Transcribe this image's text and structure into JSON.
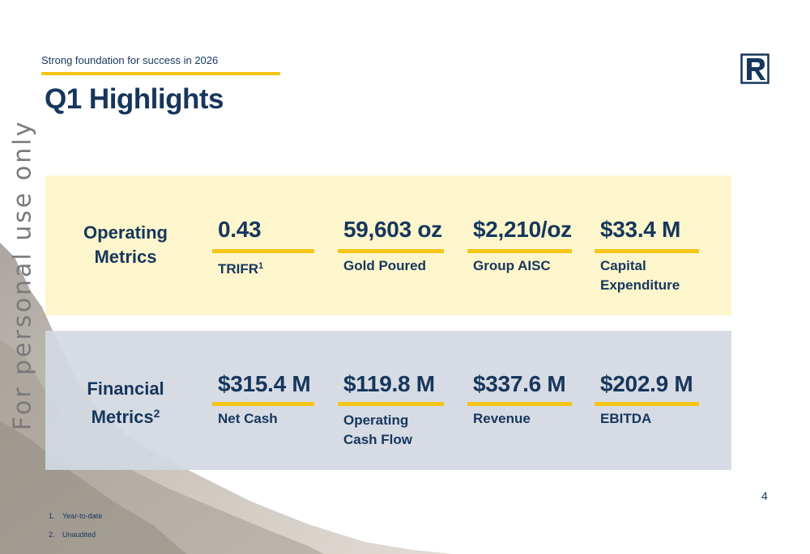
{
  "watermark": "For personal use only",
  "header": {
    "subtitle": "Strong foundation for success in 2026",
    "title": "Q1 Highlights"
  },
  "operating": {
    "label": "Operating Metrics",
    "metrics": [
      {
        "value": "0.43",
        "label": "TRIFR",
        "sup": "1"
      },
      {
        "value": "59,603 oz",
        "label": "Gold Poured",
        "sup": ""
      },
      {
        "value": "$2,210/oz",
        "label": "Group AISC",
        "sup": ""
      },
      {
        "value": "$33.4 M",
        "label": "Capital Expenditure",
        "sup": ""
      }
    ]
  },
  "financial": {
    "label": "Financial Metrics",
    "sup": "2",
    "metrics": [
      {
        "value": "$315.4 M",
        "label": "Net Cash",
        "sup": ""
      },
      {
        "value": "$119.8 M",
        "label": "Operating Cash Flow",
        "sup": ""
      },
      {
        "value": "$337.6 M",
        "label": "Revenue",
        "sup": ""
      },
      {
        "value": "$202.9 M",
        "label": "EBITDA",
        "sup": ""
      }
    ]
  },
  "footnotes": [
    {
      "number": "1.",
      "text": "Year-to-date"
    },
    {
      "number": "2.",
      "text": "Unaudited"
    }
  ],
  "page_number": "4",
  "colors": {
    "navy": "#16365c",
    "gold": "#f5c518",
    "operating_bg": "#fdf5c8",
    "financial_bg": "#d3d8e2"
  }
}
